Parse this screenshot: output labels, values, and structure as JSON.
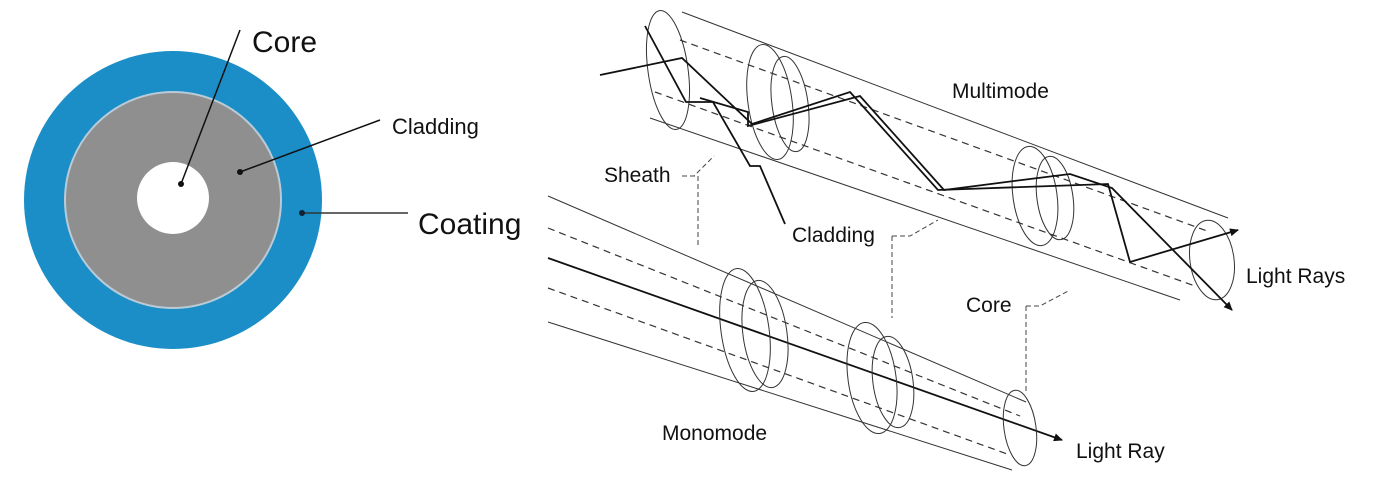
{
  "cross_section": {
    "labels": {
      "core": "Core",
      "cladding": "Cladding",
      "coating": "Coating"
    },
    "colors": {
      "coating": "#1b8ec8",
      "cladding": "#8f8f8f",
      "core": "#ffffff"
    }
  },
  "fiber_3d": {
    "labels": {
      "multimode": "Multimode",
      "sheath": "Sheath",
      "cladding": "Cladding",
      "core": "Core",
      "light_rays": "Light Rays",
      "monomode": "Monomode",
      "light_ray": "Light Ray"
    }
  }
}
